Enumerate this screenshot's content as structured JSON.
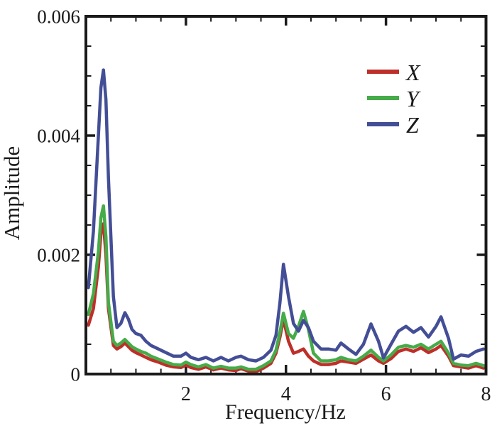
{
  "figure": {
    "background": "#ffffff",
    "frame_color": "#1a1a1a",
    "text_color": "#1a1a1a"
  },
  "chart_data": {
    "type": "line",
    "title": "",
    "xlabel": "Frequency/Hz",
    "ylabel": "Amplitude",
    "xlim": [
      0,
      8
    ],
    "ylim": [
      0,
      0.006
    ],
    "grid": false,
    "legend_position": "upper right",
    "x_major_ticks": [
      2,
      4,
      6,
      8
    ],
    "x_tick_labels": [
      "2",
      "4",
      "6",
      "8"
    ],
    "x_minor_step": 0.5,
    "y_major_ticks": [
      0,
      0.002,
      0.004,
      0.006
    ],
    "y_tick_labels": [
      "0",
      "0.002",
      "0.004",
      "0.006"
    ],
    "y_minor_step": 0.0005,
    "x": [
      0.05,
      0.15,
      0.25,
      0.3,
      0.35,
      0.4,
      0.45,
      0.55,
      0.62,
      0.7,
      0.78,
      0.85,
      0.92,
      1.0,
      1.1,
      1.2,
      1.3,
      1.45,
      1.6,
      1.75,
      1.9,
      2.0,
      2.1,
      2.25,
      2.4,
      2.55,
      2.7,
      2.85,
      3.0,
      3.1,
      3.25,
      3.4,
      3.55,
      3.7,
      3.8,
      3.88,
      3.95,
      4.05,
      4.15,
      4.25,
      4.35,
      4.45,
      4.55,
      4.7,
      4.85,
      5.0,
      5.1,
      5.25,
      5.4,
      5.55,
      5.7,
      5.85,
      5.95,
      6.1,
      6.25,
      6.4,
      6.55,
      6.7,
      6.85,
      7.0,
      7.1,
      7.25,
      7.35,
      7.5,
      7.65,
      7.8,
      7.95
    ],
    "series": [
      {
        "name": "X",
        "color": "#be2f29",
        "values": [
          0.00082,
          0.0011,
          0.0018,
          0.00235,
          0.00252,
          0.002,
          0.0011,
          0.00048,
          0.00042,
          0.00046,
          0.00052,
          0.00046,
          0.0004,
          0.00036,
          0.00032,
          0.00028,
          0.00024,
          0.0002,
          0.00015,
          0.00012,
          0.00011,
          0.00015,
          0.00011,
          8e-05,
          0.00012,
          7e-05,
          0.0001,
          7e-05,
          6e-05,
          9e-05,
          5e-05,
          4e-05,
          0.0001,
          0.00018,
          0.00035,
          0.00062,
          0.00092,
          0.00055,
          0.00035,
          0.00038,
          0.00042,
          0.0003,
          0.00022,
          0.00016,
          0.00016,
          0.00018,
          0.00022,
          0.0002,
          0.00018,
          0.00025,
          0.00032,
          0.00022,
          0.00018,
          0.00026,
          0.00038,
          0.00042,
          0.00038,
          0.00044,
          0.00036,
          0.00042,
          0.00048,
          0.0003,
          0.00014,
          0.00012,
          0.0001,
          0.00014,
          0.0001
        ]
      },
      {
        "name": "Y",
        "color": "#46ab49",
        "values": [
          0.001,
          0.00135,
          0.00205,
          0.00262,
          0.00282,
          0.0023,
          0.0012,
          0.00055,
          0.00048,
          0.00052,
          0.00058,
          0.00052,
          0.00046,
          0.00042,
          0.00038,
          0.00035,
          0.0003,
          0.00025,
          0.0002,
          0.00016,
          0.00015,
          0.0002,
          0.00016,
          0.00012,
          0.00016,
          0.0001,
          0.00013,
          0.0001,
          0.0001,
          0.00012,
          8e-05,
          8e-05,
          0.00014,
          0.00022,
          0.0004,
          0.0007,
          0.00102,
          0.00068,
          0.0006,
          0.0008,
          0.00105,
          0.00075,
          0.00035,
          0.00022,
          0.00022,
          0.00024,
          0.00028,
          0.00024,
          0.00022,
          0.0003,
          0.0004,
          0.00028,
          0.00022,
          0.00032,
          0.00045,
          0.00048,
          0.00045,
          0.0005,
          0.00042,
          0.0005,
          0.00055,
          0.00035,
          0.00018,
          0.00015,
          0.00014,
          0.00018,
          0.00014
        ]
      },
      {
        "name": "Z",
        "color": "#434e96",
        "values": [
          0.00145,
          0.0024,
          0.004,
          0.0048,
          0.0051,
          0.0046,
          0.0033,
          0.0013,
          0.00078,
          0.00085,
          0.00103,
          0.00092,
          0.00075,
          0.00068,
          0.00065,
          0.00055,
          0.00048,
          0.00042,
          0.00036,
          0.0003,
          0.0003,
          0.00035,
          0.00028,
          0.00024,
          0.00028,
          0.00022,
          0.00028,
          0.00022,
          0.00028,
          0.0003,
          0.00024,
          0.00022,
          0.00028,
          0.0004,
          0.00065,
          0.0012,
          0.00184,
          0.0013,
          0.00085,
          0.00072,
          0.0009,
          0.00078,
          0.00055,
          0.00042,
          0.00042,
          0.0004,
          0.00052,
          0.00042,
          0.00033,
          0.0005,
          0.00084,
          0.00055,
          0.00027,
          0.0005,
          0.00072,
          0.0008,
          0.0007,
          0.00078,
          0.00062,
          0.0008,
          0.00096,
          0.0006,
          0.00025,
          0.00032,
          0.0003,
          0.00038,
          0.00042
        ]
      }
    ]
  }
}
